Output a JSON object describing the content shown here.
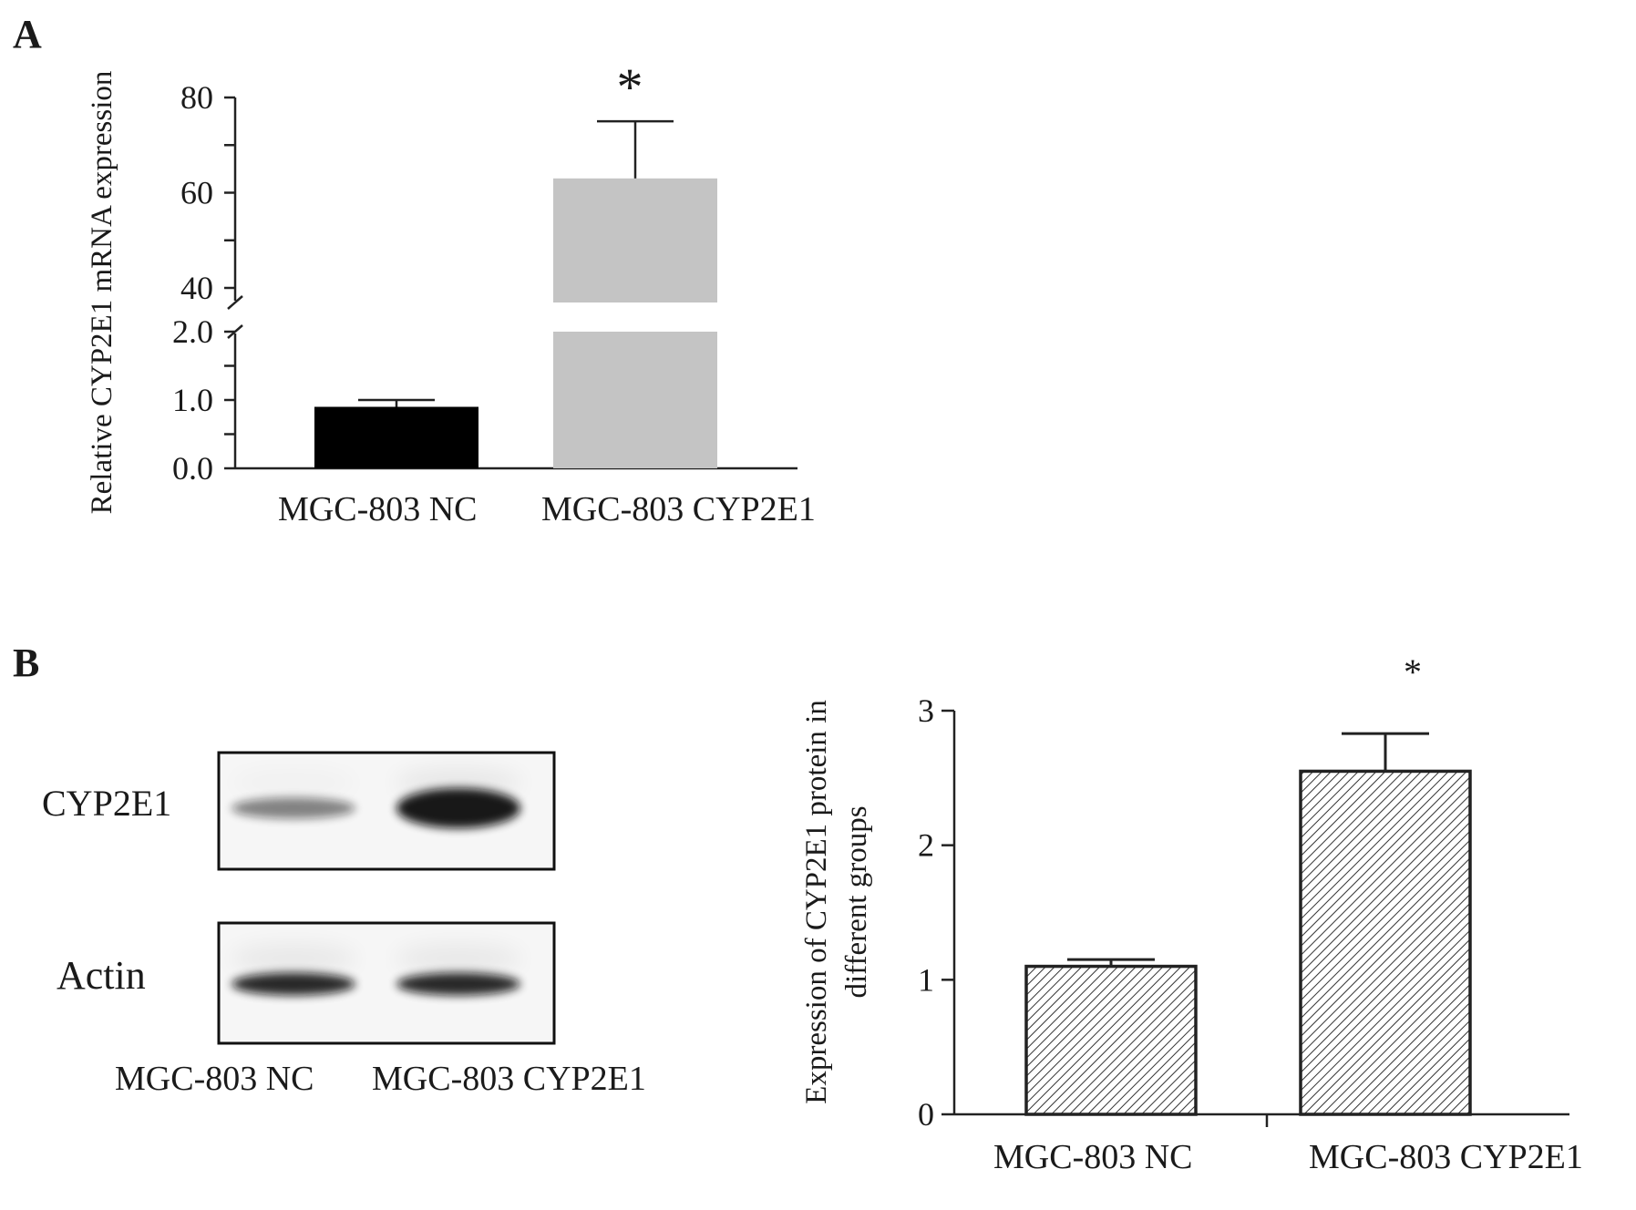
{
  "panels": {
    "a": {
      "letter": "A"
    },
    "b": {
      "letter": "B"
    }
  },
  "blot": {
    "rows": [
      {
        "label": "CYP2E1",
        "band_intensity": [
          0.35,
          1.0
        ]
      },
      {
        "label": "Actin",
        "band_intensity": [
          0.9,
          0.9
        ]
      }
    ],
    "lanes": [
      "MGC-803 NC",
      "MGC-803 CYP2E1"
    ]
  },
  "colors": {
    "nc_bar": "#000000",
    "cyp_bar": "#c4c4c4",
    "axis": "#222222",
    "hatch_bar_fill": "#ffffff"
  },
  "chart_data": [
    {
      "id": "A",
      "type": "bar",
      "categories": [
        "MGC-803 NC",
        "MGC-803 CYP2E1"
      ],
      "values": [
        0.9,
        63
      ],
      "errors": [
        0.1,
        12
      ],
      "significance": [
        "",
        "*"
      ],
      "ylabel": "Relative CYP2E1 mRNA expression",
      "xlabel": "",
      "y_broken": true,
      "y_segments": [
        {
          "range": [
            0,
            2
          ],
          "ticks": [
            "0.0",
            "1.0",
            "2.0"
          ],
          "tick_values": [
            0,
            1,
            2
          ]
        },
        {
          "range": [
            40,
            80
          ],
          "ticks": [
            "40",
            "60",
            "80"
          ],
          "tick_values": [
            40,
            60,
            80
          ]
        }
      ],
      "bar_colors": [
        "#000000",
        "#c4c4c4"
      ],
      "grid": false
    },
    {
      "id": "B",
      "type": "bar",
      "categories": [
        "MGC-803 NC",
        "MGC-803 CYP2E1"
      ],
      "values": [
        1.1,
        2.55
      ],
      "errors": [
        0.05,
        0.28
      ],
      "significance": [
        "",
        "*"
      ],
      "ylabel": "Expression of CYP2E1 protein in different groups",
      "ylabel_lines": [
        "Expression of CYP2E1 protein in",
        "different groups"
      ],
      "xlabel": "",
      "ylim": [
        0,
        3
      ],
      "yticks": [
        "0",
        "1",
        "2",
        "3"
      ],
      "ytick_values": [
        0,
        1,
        2,
        3
      ],
      "bar_pattern": "hatched",
      "grid": false
    }
  ]
}
